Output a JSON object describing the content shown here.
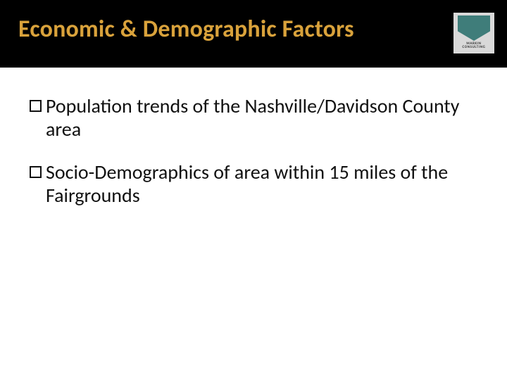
{
  "slide": {
    "title": "Economic & Demographic Factors",
    "title_color": "#d9a23b",
    "header_bg": "#000000",
    "body_bg": "#ffffff",
    "bullets": [
      "Population trends of the Nashville/Davidson County area",
      "Socio-Demographics of area within 15 miles of the Fairgrounds"
    ],
    "bullet_font_size": 28,
    "bullet_color": "#111111",
    "logo": {
      "line1": "MARKIN",
      "line2": "CONSULTING",
      "bg": "#d9d9d9",
      "mark_color": "#3f7d7a"
    }
  }
}
